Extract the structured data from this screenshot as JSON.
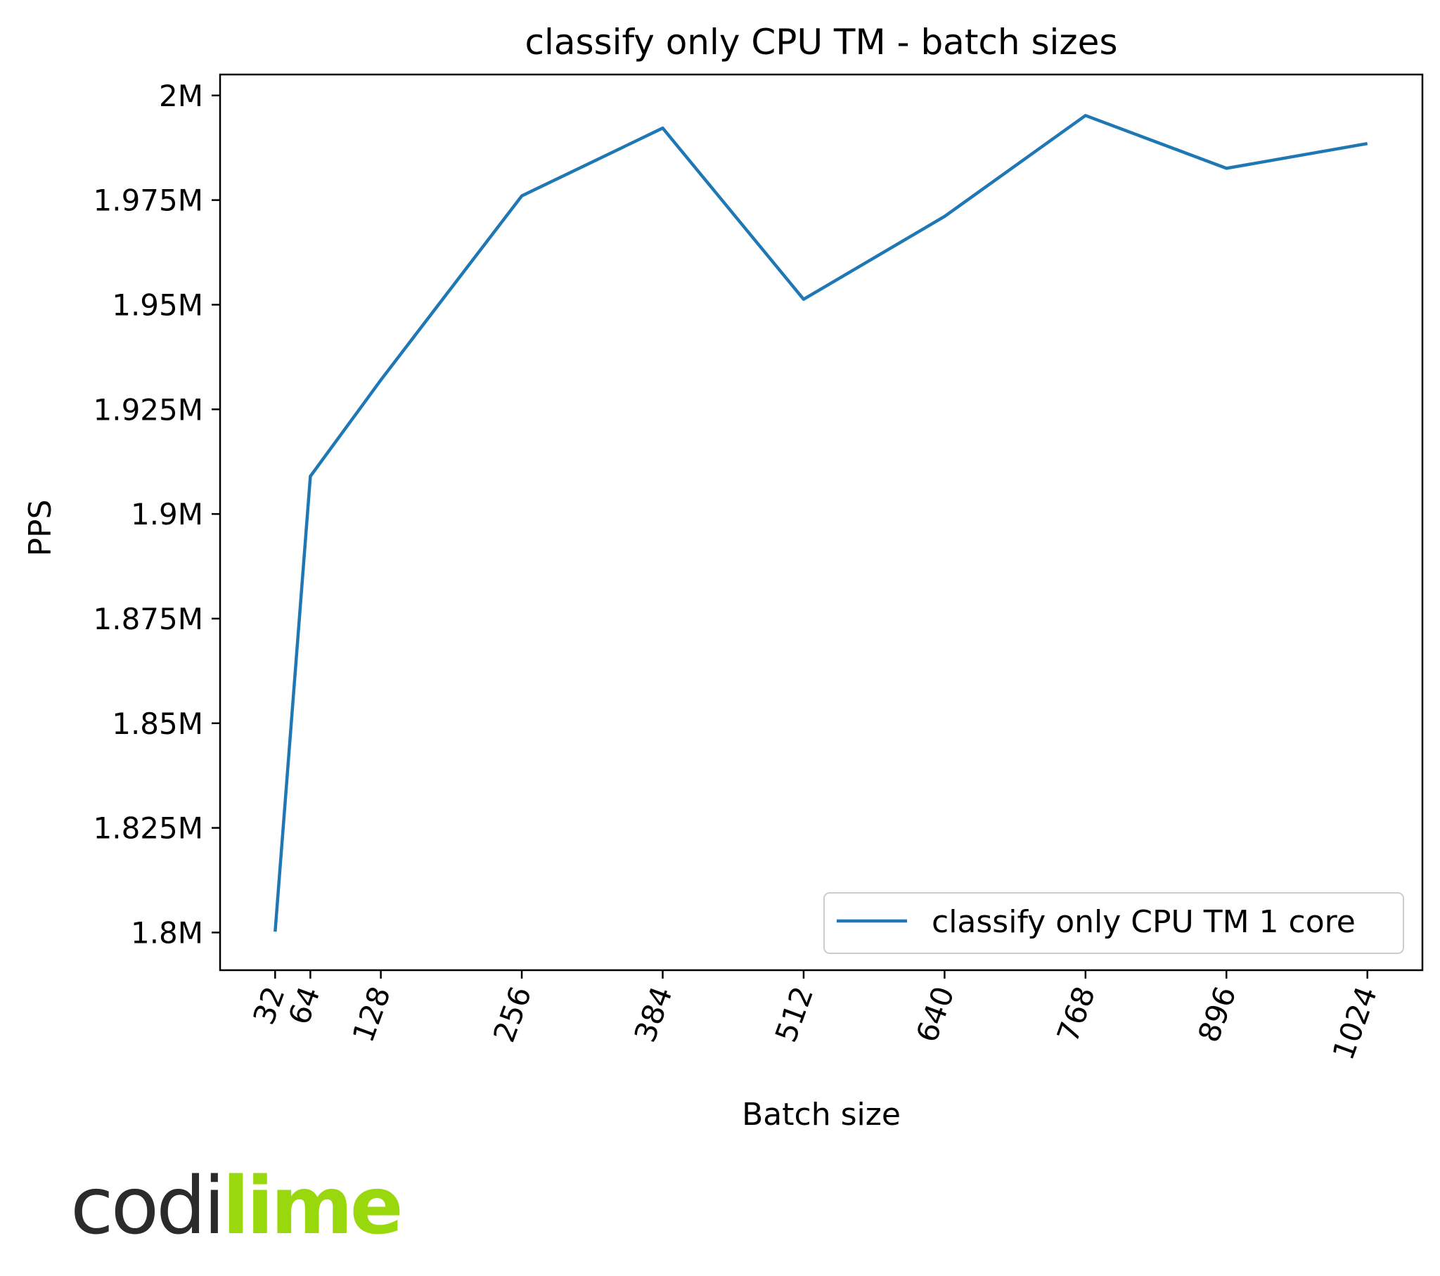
{
  "chart_data": {
    "type": "line",
    "title": "classify only CPU TM - batch sizes",
    "xlabel": "Batch size",
    "ylabel": "PPS",
    "x": [
      32,
      64,
      128,
      256,
      384,
      512,
      640,
      768,
      896,
      1024
    ],
    "xticks": [
      "32",
      "64",
      "128",
      "256",
      "384",
      "512",
      "640",
      "768",
      "896",
      "1024"
    ],
    "yticks": [
      {
        "value": 1800000,
        "label": "1.8M"
      },
      {
        "value": 1825000,
        "label": "1.825M"
      },
      {
        "value": 1850000,
        "label": "1.85M"
      },
      {
        "value": 1875000,
        "label": "1.875M"
      },
      {
        "value": 1900000,
        "label": "1.9M"
      },
      {
        "value": 1925000,
        "label": "1.925M"
      },
      {
        "value": 1950000,
        "label": "1.95M"
      },
      {
        "value": 1975000,
        "label": "1.975M"
      },
      {
        "value": 2000000,
        "label": "2M"
      }
    ],
    "xlim": [
      -18,
      1074
    ],
    "ylim": [
      1791000,
      2005000
    ],
    "grid": false,
    "legend_position": "lower-right",
    "series": [
      {
        "name": "classify only CPU TM 1 core",
        "color": "#1f77b4",
        "values": [
          1800200,
          1909000,
          1932000,
          1976000,
          1992200,
          1951300,
          1971100,
          1995200,
          1982600,
          1988500
        ]
      }
    ]
  },
  "logo": {
    "part1": "codi",
    "part2": "lime"
  }
}
